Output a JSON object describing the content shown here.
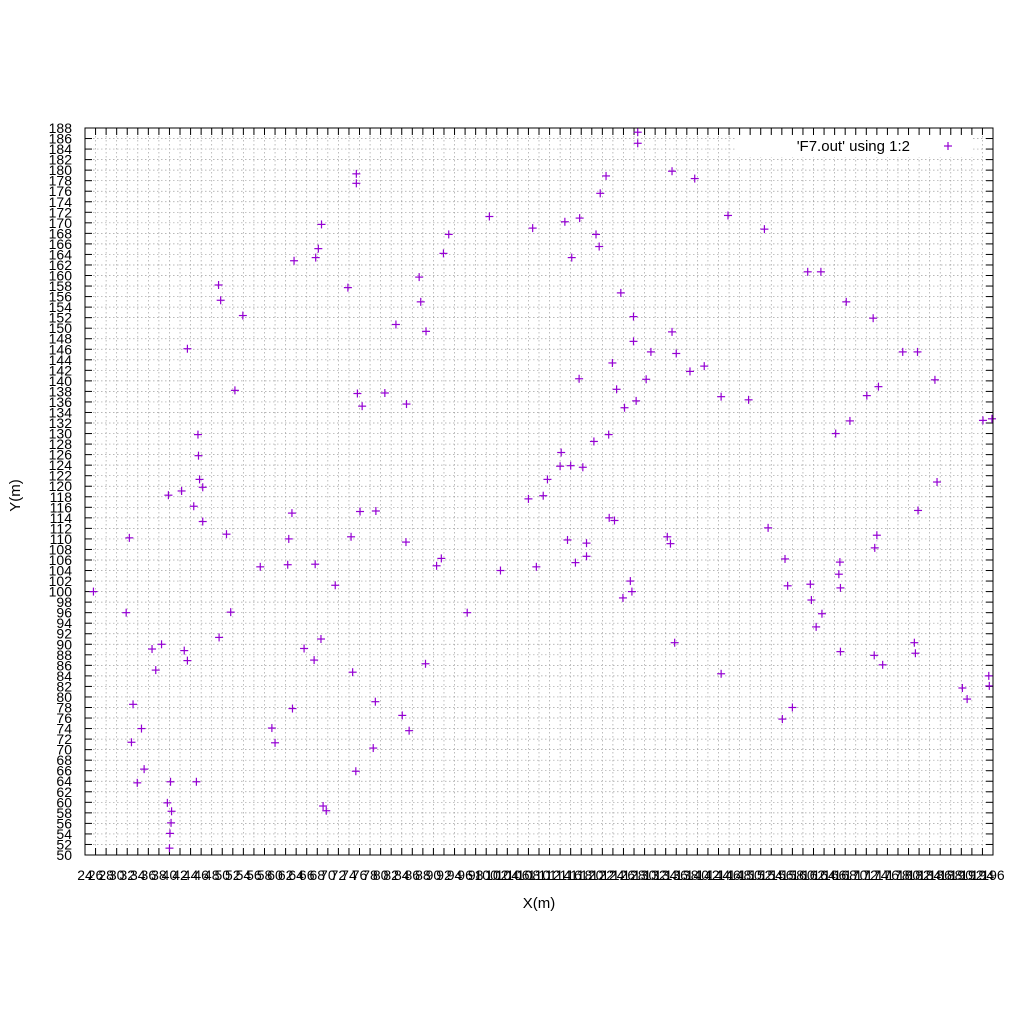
{
  "chart_data": {
    "type": "scatter",
    "title": "",
    "xlabel": "X(m)",
    "ylabel": "Y(m)",
    "xlim": [
      24,
      196
    ],
    "ylim": [
      50,
      188
    ],
    "x_ticks": [
      24,
      26,
      28,
      30,
      32,
      34,
      36,
      38,
      40,
      42,
      44,
      46,
      48,
      50,
      52,
      54,
      56,
      58,
      60,
      62,
      64,
      66,
      68,
      70,
      72,
      74,
      76,
      78,
      80,
      82,
      84,
      86,
      88,
      90,
      92,
      94,
      96,
      98,
      100,
      102,
      104,
      106,
      108,
      110,
      112,
      114,
      116,
      118,
      120,
      122,
      124,
      126,
      128,
      130,
      132,
      134,
      136,
      138,
      140,
      142,
      144,
      146,
      148,
      150,
      152,
      154,
      156,
      158,
      160,
      162,
      164,
      166,
      168,
      170,
      172,
      174,
      176,
      178,
      180,
      182,
      184,
      186,
      188,
      190,
      192,
      194,
      196
    ],
    "y_ticks": [
      50,
      52,
      54,
      56,
      58,
      60,
      62,
      64,
      66,
      68,
      70,
      72,
      74,
      76,
      78,
      80,
      82,
      84,
      86,
      88,
      90,
      92,
      94,
      96,
      98,
      100,
      102,
      104,
      106,
      108,
      110,
      112,
      114,
      116,
      118,
      120,
      122,
      124,
      126,
      128,
      130,
      132,
      134,
      136,
      138,
      140,
      142,
      144,
      146,
      148,
      150,
      152,
      154,
      156,
      158,
      160,
      162,
      164,
      166,
      168,
      170,
      172,
      174,
      176,
      178,
      180,
      182,
      184,
      186,
      188
    ],
    "grid": true,
    "legend_position": "top-right",
    "series": [
      {
        "name": "'F7.out' using 1:2",
        "color": "#9400d3",
        "marker": "+",
        "points": [
          [
            25.6,
            100.0
          ],
          [
            31.8,
            96.0
          ],
          [
            32.4,
            110.2
          ],
          [
            32.8,
            71.4
          ],
          [
            33.1,
            78.6
          ],
          [
            33.9,
            63.7
          ],
          [
            34.7,
            74.0
          ],
          [
            35.2,
            66.3
          ],
          [
            36.7,
            89.1
          ],
          [
            37.4,
            85.1
          ],
          [
            38.5,
            90.0
          ],
          [
            39.6,
            59.9
          ],
          [
            39.8,
            118.3
          ],
          [
            40.0,
            51.3
          ],
          [
            40.1,
            54.1
          ],
          [
            40.2,
            63.9
          ],
          [
            40.3,
            56.1
          ],
          [
            40.4,
            58.3
          ],
          [
            42.3,
            119.1
          ],
          [
            42.8,
            88.8
          ],
          [
            43.4,
            86.9
          ],
          [
            43.4,
            146.1
          ],
          [
            44.6,
            116.2
          ],
          [
            45.1,
            63.9
          ],
          [
            45.4,
            129.8
          ],
          [
            45.5,
            125.8
          ],
          [
            45.7,
            121.3
          ],
          [
            46.3,
            113.3
          ],
          [
            46.3,
            119.8
          ],
          [
            49.3,
            158.2
          ],
          [
            49.4,
            91.3
          ],
          [
            49.7,
            155.3
          ],
          [
            50.8,
            110.9
          ],
          [
            51.6,
            96.1
          ],
          [
            52.4,
            138.2
          ],
          [
            53.9,
            152.4
          ],
          [
            57.2,
            104.7
          ],
          [
            59.4,
            74.1
          ],
          [
            60.0,
            71.3
          ],
          [
            62.4,
            105.1
          ],
          [
            62.6,
            110.0
          ],
          [
            63.2,
            114.9
          ],
          [
            63.3,
            77.8
          ],
          [
            63.6,
            162.8
          ],
          [
            65.5,
            89.2
          ],
          [
            67.4,
            87.0
          ],
          [
            67.6,
            105.2
          ],
          [
            67.7,
            163.4
          ],
          [
            68.2,
            165.1
          ],
          [
            68.7,
            91.0
          ],
          [
            68.8,
            169.7
          ],
          [
            69.1,
            59.3
          ],
          [
            69.7,
            58.4
          ],
          [
            71.4,
            101.2
          ],
          [
            73.8,
            157.7
          ],
          [
            74.4,
            110.4
          ],
          [
            74.7,
            84.7
          ],
          [
            75.4,
            179.3
          ],
          [
            75.4,
            177.5
          ],
          [
            75.3,
            65.9
          ],
          [
            75.6,
            137.6
          ],
          [
            76.1,
            115.2
          ],
          [
            76.5,
            135.2
          ],
          [
            78.6,
            70.3
          ],
          [
            79.1,
            115.3
          ],
          [
            79.0,
            79.1
          ],
          [
            80.8,
            137.7
          ],
          [
            82.9,
            150.7
          ],
          [
            84.1,
            76.5
          ],
          [
            84.9,
            135.6
          ],
          [
            84.8,
            109.4
          ],
          [
            85.4,
            73.6
          ],
          [
            87.3,
            159.7
          ],
          [
            87.6,
            155.0
          ],
          [
            88.5,
            86.3
          ],
          [
            88.6,
            149.4
          ],
          [
            90.6,
            104.9
          ],
          [
            91.5,
            106.3
          ],
          [
            91.9,
            164.2
          ],
          [
            92.9,
            167.8
          ],
          [
            96.4,
            96.0
          ],
          [
            100.6,
            171.2
          ],
          [
            102.7,
            104.0
          ],
          [
            108.0,
            117.6
          ],
          [
            108.8,
            169.0
          ],
          [
            109.5,
            104.7
          ],
          [
            110.8,
            118.2
          ],
          [
            111.6,
            121.3
          ],
          [
            114.2,
            126.4
          ],
          [
            114.0,
            123.8
          ],
          [
            114.9,
            170.2
          ],
          [
            115.4,
            109.8
          ],
          [
            116.0,
            123.9
          ],
          [
            116.2,
            163.4
          ],
          [
            116.9,
            105.5
          ],
          [
            117.6,
            140.4
          ],
          [
            117.7,
            170.9
          ],
          [
            118.3,
            123.6
          ],
          [
            119.0,
            106.7
          ],
          [
            119.0,
            109.2
          ],
          [
            120.4,
            128.5
          ],
          [
            120.8,
            167.8
          ],
          [
            121.4,
            165.5
          ],
          [
            121.6,
            175.6
          ],
          [
            122.7,
            178.9
          ],
          [
            123.2,
            129.8
          ],
          [
            123.3,
            114.0
          ],
          [
            123.9,
            143.4
          ],
          [
            124.3,
            113.5
          ],
          [
            124.7,
            138.4
          ],
          [
            125.5,
            156.7
          ],
          [
            125.9,
            98.8
          ],
          [
            126.2,
            134.9
          ],
          [
            127.3,
            102.0
          ],
          [
            127.6,
            100.0
          ],
          [
            127.9,
            152.2
          ],
          [
            127.9,
            147.5
          ],
          [
            128.4,
            136.2
          ],
          [
            128.7,
            187.2
          ],
          [
            128.7,
            185.1
          ],
          [
            130.3,
            140.3
          ],
          [
            131.2,
            145.5
          ],
          [
            134.3,
            110.4
          ],
          [
            134.9,
            109.1
          ],
          [
            135.2,
            179.8
          ],
          [
            135.2,
            149.3
          ],
          [
            135.7,
            90.3
          ],
          [
            136.0,
            145.2
          ],
          [
            138.6,
            141.8
          ],
          [
            139.5,
            178.4
          ],
          [
            141.3,
            142.8
          ],
          [
            144.5,
            84.4
          ],
          [
            144.5,
            137.0
          ],
          [
            145.8,
            171.4
          ],
          [
            149.7,
            136.4
          ],
          [
            152.7,
            168.8
          ],
          [
            153.4,
            112.1
          ],
          [
            156.1,
            75.8
          ],
          [
            156.6,
            106.2
          ],
          [
            157.1,
            101.1
          ],
          [
            158.0,
            78.0
          ],
          [
            160.9,
            160.7
          ],
          [
            161.4,
            101.4
          ],
          [
            161.6,
            98.4
          ],
          [
            162.5,
            93.3
          ],
          [
            163.4,
            160.7
          ],
          [
            163.6,
            95.8
          ],
          [
            166.2,
            130.0
          ],
          [
            166.8,
            103.3
          ],
          [
            167.0,
            105.6
          ],
          [
            167.1,
            100.7
          ],
          [
            167.1,
            88.6
          ],
          [
            168.2,
            155.0
          ],
          [
            168.9,
            132.4
          ],
          [
            172.1,
            137.2
          ],
          [
            173.3,
            151.9
          ],
          [
            173.5,
            87.9
          ],
          [
            173.6,
            108.3
          ],
          [
            174.0,
            110.7
          ],
          [
            174.3,
            138.9
          ],
          [
            175.1,
            86.1
          ],
          [
            178.9,
            145.5
          ],
          [
            181.1,
            90.3
          ],
          [
            181.3,
            88.3
          ],
          [
            181.7,
            145.5
          ],
          [
            181.8,
            115.4
          ],
          [
            185.0,
            140.2
          ],
          [
            185.4,
            120.8
          ],
          [
            190.2,
            81.7
          ],
          [
            191.1,
            79.6
          ],
          [
            194.1,
            132.5
          ],
          [
            195.2,
            84.0
          ],
          [
            195.3,
            82.1
          ],
          [
            195.8,
            132.8
          ]
        ]
      }
    ]
  }
}
